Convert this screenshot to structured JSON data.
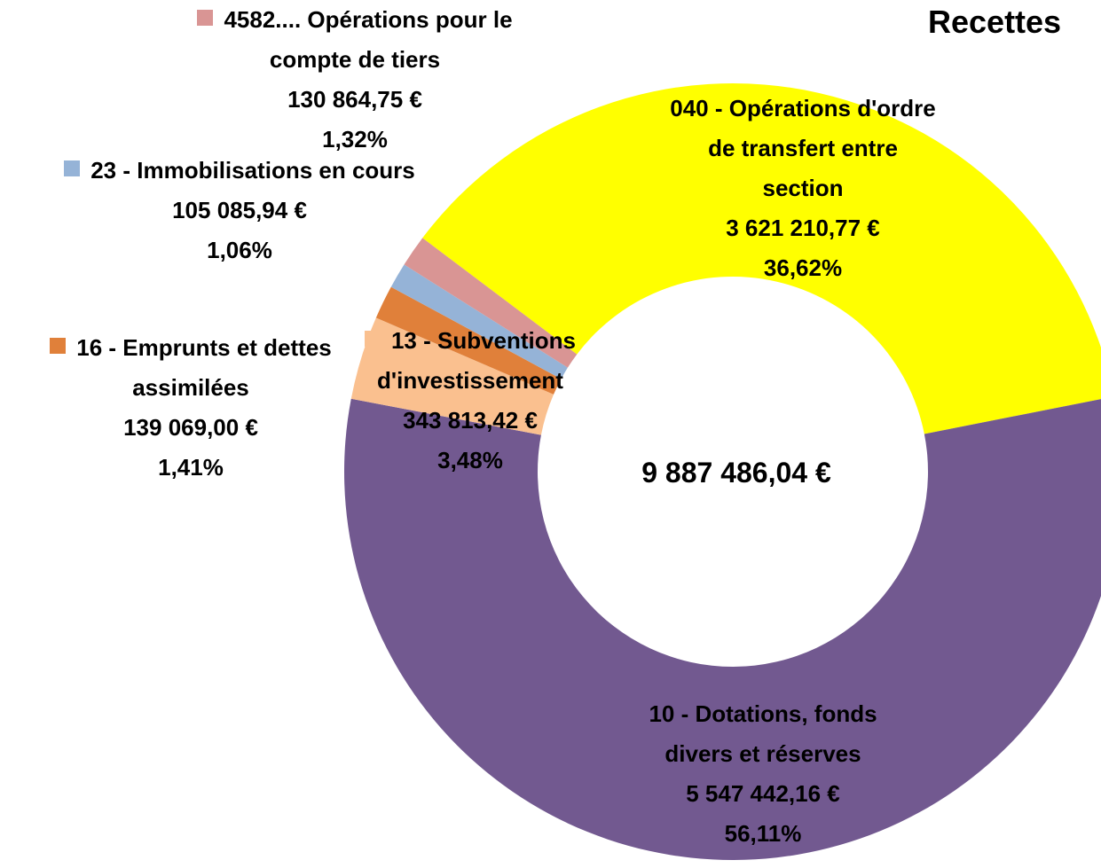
{
  "chart_data": {
    "type": "donut",
    "title": "Recettes",
    "total": 9887486.04,
    "total_label": "9 887 486,04 €",
    "categories": [
      "040 - Opérations d'ordre de transfert entre section",
      "10 - Dotations, fonds divers et réserves",
      "13 - Subventions d'investissement",
      "16 - Emprunts et dettes assimilées",
      "23 - Immobilisations en cours",
      "4582.... Opérations pour le compte de tiers"
    ],
    "values": [
      3621210.77,
      5547442.16,
      343813.42,
      139069.0,
      105085.94,
      130864.75
    ],
    "value_labels": [
      "3 621 210,77 €",
      "5 547 442,16 €",
      "343 813,42 €",
      "139 069,00 €",
      "105 085,94 €",
      "130 864,75 €"
    ],
    "percentages": [
      36.62,
      56.11,
      3.48,
      1.41,
      1.06,
      1.32
    ],
    "percent_labels": [
      "36,62%",
      "56,11%",
      "3,48%",
      "1,41%",
      "1,06%",
      "1,32%"
    ],
    "colors": [
      "#ffff00",
      "#725990",
      "#fac08f",
      "#e0803a",
      "#95b3d7",
      "#d99594"
    ]
  }
}
